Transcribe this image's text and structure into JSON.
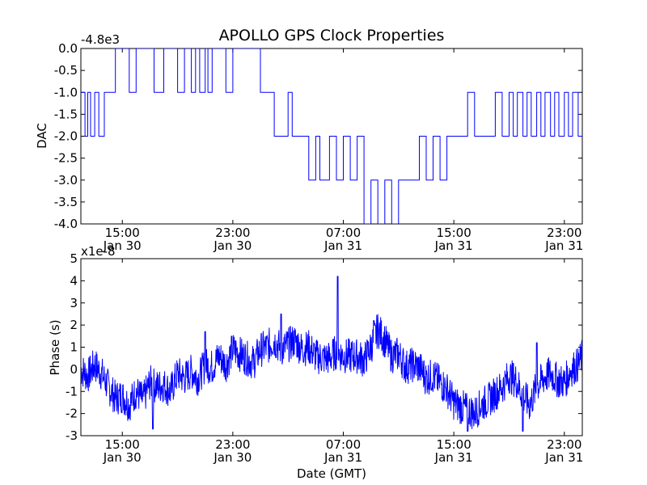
{
  "chart_data": [
    {
      "type": "line",
      "name": "dac",
      "title": "APOLLO GPS Clock Properties",
      "xlabel": "",
      "ylabel": "DAC",
      "y_offset_label": "-4.8e3",
      "ylim": [
        -4.0,
        0.0
      ],
      "y_ticks": [
        0.0,
        -0.5,
        -1.0,
        -1.5,
        -2.0,
        -2.5,
        -3.0,
        -3.5,
        -4.0
      ],
      "y_tick_labels": [
        "0.0",
        "-0.5",
        "-1.0",
        "-1.5",
        "-2.0",
        "-2.5",
        "-3.0",
        "-3.5",
        "-4.0"
      ],
      "xlim_hours": [
        12.0,
        48.3
      ],
      "x_ticks": [
        {
          "hour": 15,
          "time": "15:00",
          "date": "Jan 30"
        },
        {
          "hour": 23,
          "time": "23:00",
          "date": "Jan 30"
        },
        {
          "hour": 31,
          "time": "07:00",
          "date": "Jan 31"
        },
        {
          "hour": 39,
          "time": "15:00",
          "date": "Jan 31"
        },
        {
          "hour": 47,
          "time": "23:00",
          "date": "Jan 31"
        }
      ],
      "series": [
        {
          "name": "DAC",
          "color": "#0000ff",
          "x_hours": [
            12.0,
            12.3,
            12.5,
            12.7,
            13.0,
            13.3,
            13.5,
            13.7,
            14.2,
            14.5,
            15.0,
            15.5,
            16.0,
            16.3,
            17.0,
            17.3,
            18.0,
            18.5,
            19.0,
            19.5,
            20.0,
            20.3,
            20.6,
            21.0,
            21.2,
            21.5,
            22.0,
            22.5,
            23.0,
            24.0,
            25.0,
            26.0,
            26.5,
            27.0,
            27.3,
            27.6,
            28.0,
            28.5,
            29.0,
            29.3,
            30.0,
            30.5,
            31.0,
            31.5,
            32.0,
            32.5,
            33.0,
            33.5,
            34.0,
            34.5,
            35.0,
            35.5,
            36.0,
            36.5,
            37.0,
            37.5,
            38.0,
            38.5,
            39.0,
            39.5,
            40.0,
            40.5,
            41.0,
            41.5,
            42.0,
            42.5,
            43.0,
            43.3,
            43.6,
            44.0,
            44.3,
            44.6,
            45.0,
            45.3,
            45.6,
            46.0,
            46.3,
            46.6,
            47.0,
            47.3,
            47.6,
            48.0,
            48.3
          ],
          "values": [
            -1.0,
            -2.0,
            -1.0,
            -2.0,
            -1.0,
            -2.0,
            -2.0,
            -1.0,
            -1.0,
            0.0,
            0.0,
            -1.0,
            0.0,
            0.0,
            0.0,
            -1.0,
            0.0,
            0.0,
            -1.0,
            0.0,
            -1.0,
            0.0,
            -1.0,
            0.0,
            -1.0,
            0.0,
            0.0,
            -1.0,
            0.0,
            0.0,
            -1.0,
            -2.0,
            -2.0,
            -1.0,
            -2.0,
            -2.0,
            -2.0,
            -3.0,
            -2.0,
            -3.0,
            -2.0,
            -3.0,
            -2.0,
            -3.0,
            -2.0,
            -4.0,
            -3.0,
            -4.0,
            -3.0,
            -4.0,
            -3.0,
            -3.0,
            -3.0,
            -2.0,
            -3.0,
            -2.0,
            -3.0,
            -2.0,
            -2.0,
            -2.0,
            -1.0,
            -2.0,
            -2.0,
            -2.0,
            -1.0,
            -2.0,
            -1.0,
            -2.0,
            -1.0,
            -2.0,
            -1.0,
            -2.0,
            -1.0,
            -2.0,
            -1.0,
            -2.0,
            -1.0,
            -2.0,
            -1.0,
            -2.0,
            -1.0,
            -2.0,
            -2.0
          ]
        }
      ]
    },
    {
      "type": "line",
      "name": "phase",
      "title": "",
      "xlabel": "Date (GMT)",
      "ylabel": "Phase (s)",
      "y_offset_label": "x1e-8",
      "ylim": [
        -3,
        5
      ],
      "y_ticks": [
        5,
        4,
        3,
        2,
        1,
        0,
        -1,
        -2,
        -3
      ],
      "y_tick_labels": [
        "5",
        "4",
        "3",
        "2",
        "1",
        "0",
        "-1",
        "-2",
        "-3"
      ],
      "xlim_hours": [
        12.0,
        48.3
      ],
      "x_ticks": [
        {
          "hour": 15,
          "time": "15:00",
          "date": "Jan 30"
        },
        {
          "hour": 23,
          "time": "23:00",
          "date": "Jan 30"
        },
        {
          "hour": 31,
          "time": "07:00",
          "date": "Jan 31"
        },
        {
          "hour": 39,
          "time": "15:00",
          "date": "Jan 31"
        },
        {
          "hour": 47,
          "time": "23:00",
          "date": "Jan 31"
        }
      ],
      "series": [
        {
          "name": "Phase",
          "color": "#0000ff",
          "x_hours": [
            12.0,
            12.5,
            13.0,
            13.5,
            14.0,
            14.5,
            15.0,
            15.5,
            16.0,
            16.5,
            17.0,
            17.5,
            18.0,
            18.5,
            19.0,
            19.5,
            20.0,
            20.5,
            21.0,
            21.5,
            22.0,
            22.5,
            23.0,
            23.5,
            24.0,
            24.5,
            25.0,
            25.5,
            26.0,
            26.5,
            27.0,
            27.5,
            28.0,
            28.5,
            29.0,
            29.5,
            30.0,
            30.5,
            31.0,
            31.5,
            32.0,
            32.5,
            33.0,
            33.5,
            34.0,
            34.5,
            35.0,
            35.5,
            36.0,
            36.5,
            37.0,
            37.5,
            38.0,
            38.5,
            39.0,
            39.5,
            40.0,
            40.5,
            41.0,
            41.5,
            42.0,
            42.5,
            43.0,
            43.5,
            44.0,
            44.5,
            45.0,
            45.5,
            46.0,
            46.5,
            47.0,
            47.5,
            48.0,
            48.3
          ],
          "values": [
            0.0,
            -0.3,
            0.2,
            -0.2,
            -0.8,
            -1.3,
            -1.2,
            -1.6,
            -1.0,
            -1.4,
            -0.6,
            -0.8,
            -0.7,
            -1.0,
            -0.2,
            -0.4,
            -0.1,
            -0.4,
            0.2,
            0.1,
            0.6,
            0.2,
            0.9,
            0.7,
            0.5,
            0.3,
            0.9,
            1.0,
            1.3,
            0.9,
            1.1,
            1.3,
            0.9,
            1.0,
            0.6,
            0.5,
            0.5,
            0.8,
            0.6,
            0.6,
            0.6,
            0.4,
            1.0,
            1.8,
            1.3,
            0.6,
            0.7,
            0.1,
            0.2,
            0.1,
            -0.4,
            -0.3,
            -0.6,
            -0.9,
            -1.5,
            -1.7,
            -1.8,
            -2.0,
            -1.6,
            -1.4,
            -1.1,
            -0.8,
            -0.3,
            -0.5,
            -1.2,
            -1.6,
            -0.8,
            -0.4,
            -0.2,
            -0.5,
            -0.6,
            0.0,
            0.2,
            0.6
          ],
          "spikes": [
            {
              "x_hour": 30.6,
              "value": 4.2
            },
            {
              "x_hour": 33.2,
              "value": 2.2
            },
            {
              "x_hour": 21.0,
              "value": 1.7
            },
            {
              "x_hour": 26.5,
              "value": 2.5
            },
            {
              "x_hour": 17.2,
              "value": -2.7
            },
            {
              "x_hour": 40.0,
              "value": -2.8
            },
            {
              "x_hour": 44.0,
              "value": -2.8
            },
            {
              "x_hour": 45.0,
              "value": 1.2
            }
          ]
        }
      ]
    }
  ]
}
